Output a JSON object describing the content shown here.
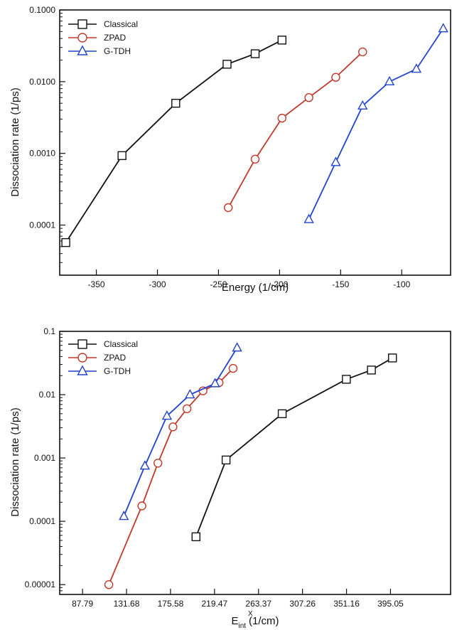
{
  "chart_data": [
    {
      "type": "line",
      "title": "",
      "xlabel": "Energy (1/cm)",
      "ylabel": "Dissociation rate (1/ps)",
      "yscale": "log",
      "xlim": [
        -380,
        -60
      ],
      "ylim": [
        2e-05,
        0.1
      ],
      "xticks": [
        -350,
        -300,
        -250,
        -200,
        -150,
        -100
      ],
      "xtick_labels": [
        "-350",
        "-300",
        "-250",
        "-200",
        "-150",
        "-100"
      ],
      "yticks": [
        0.0001,
        0.001,
        0.01,
        0.1
      ],
      "ytick_labels": [
        "0.0001",
        "0.0010",
        "0.0100",
        "0.1000"
      ],
      "grid": false,
      "legend": "top-left",
      "series": [
        {
          "name": "Classical",
          "marker": "square",
          "color": "#111111",
          "x": [
            -375,
            -329,
            -285,
            -243,
            -220,
            -198
          ],
          "y": [
            5.7e-05,
            0.00093,
            0.005,
            0.0175,
            0.0245,
            0.038
          ]
        },
        {
          "name": "ZPAD",
          "marker": "circle",
          "color": "#c0392b",
          "x": [
            -242,
            -220,
            -198,
            -176,
            -154,
            -132
          ],
          "y": [
            0.000175,
            0.00083,
            0.0031,
            0.006,
            0.0115,
            0.026
          ]
        },
        {
          "name": "G-TDH",
          "marker": "triangle",
          "color": "#2244cc",
          "x": [
            -176,
            -154,
            -132,
            -110,
            -88,
            -66
          ],
          "y": [
            0.00012,
            0.00075,
            0.0046,
            0.01,
            0.015,
            0.055
          ]
        }
      ]
    },
    {
      "type": "line",
      "title": "",
      "xlabel_main": "E",
      "xlabel_sup": "X",
      "xlabel_sub": "int",
      "xlabel_unit": "(1/cm)",
      "ylabel": "Dissociation rate (1/ps)",
      "yscale": "log",
      "xlim": [
        65,
        455
      ],
      "ylim": [
        7e-06,
        0.1
      ],
      "xticks": [
        87.79,
        131.68,
        175.58,
        219.47,
        263.37,
        307.26,
        351.16,
        395.05
      ],
      "xtick_labels": [
        "87.79",
        "131.68",
        "175.58",
        "219.47",
        "263.37",
        "307.26",
        "351.16",
        "395.05"
      ],
      "yticks": [
        1e-05,
        0.0001,
        0.001,
        0.01,
        0.1
      ],
      "ytick_labels": [
        "0.00001",
        "0.0001",
        "0.001",
        "0.01",
        "0.1"
      ],
      "grid": false,
      "legend": "top-left",
      "series": [
        {
          "name": "Classical",
          "marker": "square",
          "color": "#111111",
          "x": [
            201,
            231,
            287,
            351,
            376,
            397
          ],
          "y": [
            5.7e-05,
            0.00093,
            0.005,
            0.0175,
            0.0245,
            0.038
          ]
        },
        {
          "name": "ZPAD",
          "marker": "circle",
          "color": "#c0392b",
          "x": [
            114,
            147,
            163,
            178,
            192,
            208,
            224,
            238
          ],
          "y": [
            1e-05,
            0.000175,
            0.00083,
            0.0031,
            0.006,
            0.0115,
            0.0155,
            0.026
          ]
        },
        {
          "name": "G-TDH",
          "marker": "triangle",
          "color": "#2244cc",
          "x": [
            129,
            150,
            172,
            195,
            220,
            242
          ],
          "y": [
            0.00012,
            0.00075,
            0.0046,
            0.01,
            0.015,
            0.055
          ]
        }
      ]
    }
  ]
}
